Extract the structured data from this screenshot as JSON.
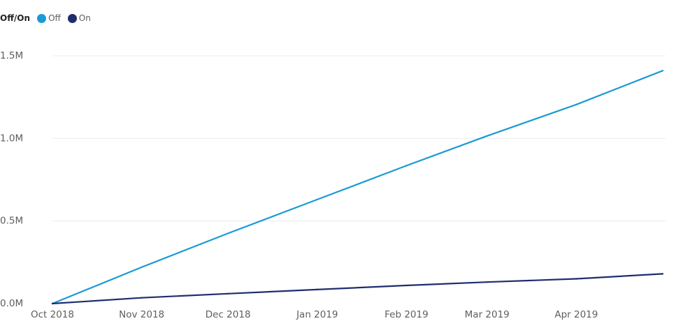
{
  "chart_data": {
    "type": "line",
    "legend": {
      "title": "Off/On",
      "placement": "top-left"
    },
    "x_ticks": [
      "Oct 2018",
      "Nov 2018",
      "Dec 2018",
      "Jan 2019",
      "Feb 2019",
      "Mar 2019",
      "Apr 2019"
    ],
    "y_ticks": [
      "0.0M",
      "0.5M",
      "1.0M",
      "1.5M"
    ],
    "ylim": [
      0,
      1500000
    ],
    "xlim": [
      "2018-10-01",
      "2019-05-02"
    ],
    "grid": "horizontal",
    "series": [
      {
        "name": "Off",
        "color": "#1a9ad6",
        "x": [
          "2018-10-01",
          "2018-11-01",
          "2018-12-01",
          "2019-01-01",
          "2019-02-01",
          "2019-03-01",
          "2019-04-01",
          "2019-05-01"
        ],
        "values": [
          0,
          220000,
          425000,
          630000,
          835000,
          1015000,
          1205000,
          1410000
        ]
      },
      {
        "name": "On",
        "color": "#1f2d6e",
        "x": [
          "2018-10-01",
          "2018-11-01",
          "2018-12-01",
          "2019-01-01",
          "2019-02-01",
          "2019-03-01",
          "2019-04-01",
          "2019-05-01"
        ],
        "values": [
          0,
          35000,
          60000,
          85000,
          110000,
          130000,
          150000,
          180000
        ]
      }
    ]
  }
}
